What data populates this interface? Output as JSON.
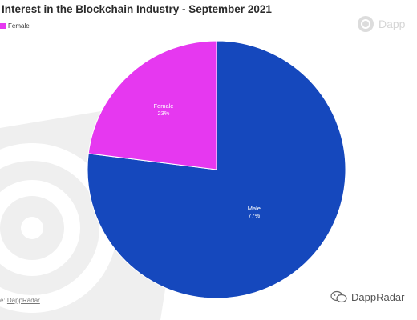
{
  "title": "Interest in the Blockchain Industry - September 2021",
  "legend": [
    {
      "name": "Female",
      "color": "#e638f0"
    }
  ],
  "watermark_top": "Dapp",
  "source": {
    "prefix": "e: ",
    "link": "DappRadar"
  },
  "footer_watermark": "DappRadar",
  "colors": {
    "male": "#1548bd",
    "female": "#e638f0",
    "watermark": "#ececec"
  },
  "chart_data": {
    "type": "pie",
    "title": "Interest in the Blockchain Industry - September 2021",
    "slices": [
      {
        "label": "Male",
        "value": 77,
        "display": "77%",
        "color": "#1548bd"
      },
      {
        "label": "Female",
        "value": 23,
        "display": "23%",
        "color": "#e638f0"
      }
    ],
    "legend_position": "top-left"
  }
}
